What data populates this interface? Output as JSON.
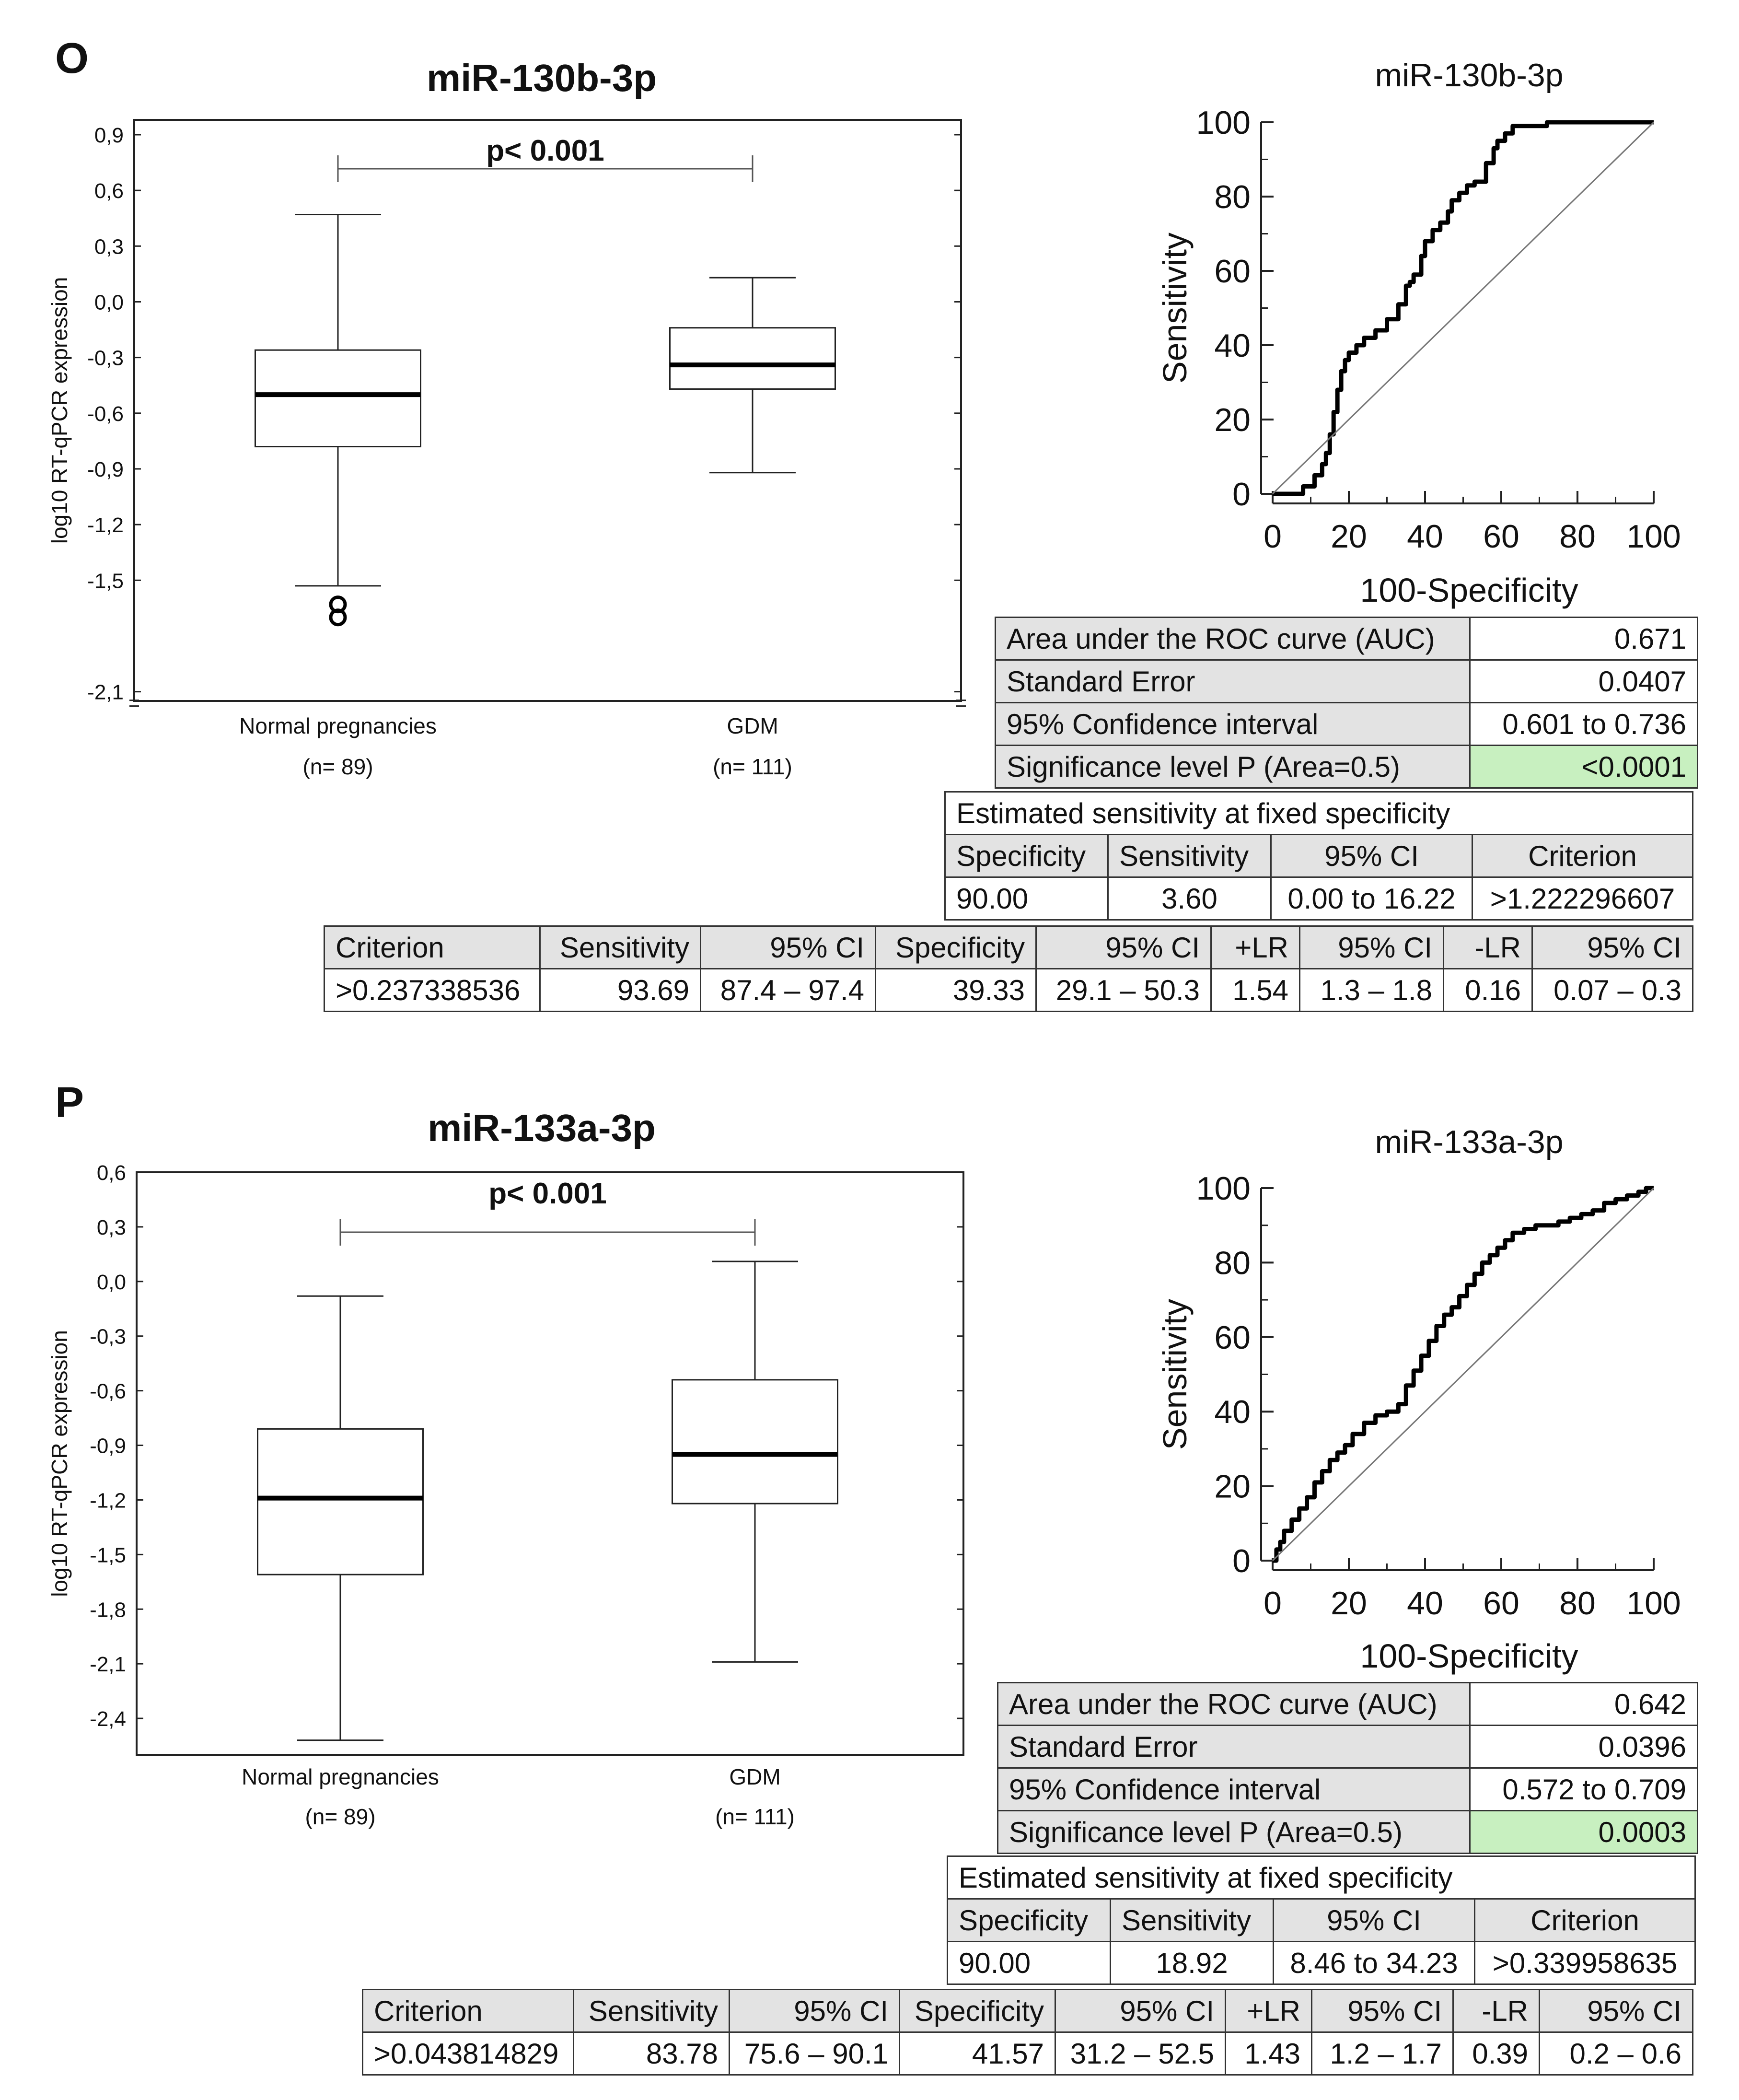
{
  "panels": [
    {
      "letter": "O",
      "boxplot_title": "miR-130b-3p",
      "roc_title": "miR-130b-3p",
      "auc_table": [
        {
          "label": "Area under the ROC curve (AUC)",
          "value": "0.671"
        },
        {
          "label": "Standard Error",
          "value": "0.0407"
        },
        {
          "label": "95% Confidence interval",
          "value": "0.601 to 0.736"
        },
        {
          "label": "Significance level P (Area=0.5)",
          "value": "<0.0001"
        }
      ],
      "fixed_spec": {
        "title": "Estimated sensitivity at fixed specificity",
        "headers": [
          "Specificity",
          "Sensitivity",
          "95% CI",
          "Criterion"
        ],
        "row": [
          "90.00",
          "3.60",
          "0.00 to 16.22",
          ">1.222296607"
        ]
      },
      "criterion_table": {
        "headers": [
          "Criterion",
          "Sensitivity",
          "95% CI",
          "Specificity",
          "95% CI",
          "+LR",
          "95% CI",
          "-LR",
          "95% CI"
        ],
        "row": [
          ">0.237338536",
          "93.69",
          "87.4 – 97.4",
          "39.33",
          "29.1 – 50.3",
          "1.54",
          "1.3 – 1.8",
          "0.16",
          "0.07 – 0.3"
        ]
      }
    },
    {
      "letter": "P",
      "boxplot_title": "miR-133a-3p",
      "roc_title": "miR-133a-3p",
      "auc_table": [
        {
          "label": "Area under the ROC curve (AUC)",
          "value": "0.642"
        },
        {
          "label": "Standard Error",
          "value": "0.0396"
        },
        {
          "label": "95% Confidence interval",
          "value": "0.572 to 0.709"
        },
        {
          "label": "Significance level P (Area=0.5)",
          "value": "0.0003"
        }
      ],
      "fixed_spec": {
        "title": "Estimated sensitivity at fixed specificity",
        "headers": [
          "Specificity",
          "Sensitivity",
          "95% CI",
          "Criterion"
        ],
        "row": [
          "90.00",
          "18.92",
          "8.46 to 34.23",
          ">0.339958635"
        ]
      },
      "criterion_table": {
        "headers": [
          "Criterion",
          "Sensitivity",
          "95% CI",
          "Specificity",
          "95% CI",
          "+LR",
          "95% CI",
          "-LR",
          "95% CI"
        ],
        "row": [
          ">0.043814829",
          "83.78",
          "75.6 – 90.1",
          "41.57",
          "31.2 – 52.5",
          "1.43",
          "1.2 – 1.7",
          "0.39",
          "0.2 – 0.6"
        ]
      }
    }
  ],
  "chart_data": [
    {
      "type": "box",
      "title": "miR-130b-3p",
      "ylabel": "log10 RT-qPCR expression",
      "ylim": [
        -2.15,
        0.98
      ],
      "yticks": [
        0.9,
        0.6,
        0.3,
        0.0,
        -0.3,
        -0.6,
        -0.9,
        -1.2,
        -1.5,
        -2.1
      ],
      "ytick_labels": [
        "0,9",
        "0,6",
        "0,3",
        "0,0",
        "-0,3",
        "-0,6",
        "-0,9",
        "-1,2",
        "-1,5",
        "-2,1"
      ],
      "ybreak_at": -2.1,
      "ybreak_plot": -1.76,
      "annotation": "p< 0.001",
      "groups": [
        {
          "name": "Normal pregnancies",
          "n_label": "(n= 89)",
          "whisker_low": -1.53,
          "q1": -0.78,
          "median": -0.5,
          "q3": -0.26,
          "whisker_high": 0.47,
          "outliers_plot": [
            -1.63,
            -1.7
          ]
        },
        {
          "name": "GDM",
          "n_label": "(n= 111)",
          "whisker_low": -0.92,
          "q1": -0.47,
          "median": -0.34,
          "q3": -0.14,
          "whisker_high": 0.13,
          "outliers_plot": []
        }
      ]
    },
    {
      "type": "line",
      "title": "miR-130b-3p",
      "xlabel": "100-Specificity",
      "ylabel": "Sensitivity",
      "xlim": [
        0,
        100
      ],
      "ylim": [
        0,
        100
      ],
      "xticks": [
        0,
        20,
        40,
        60,
        80,
        100
      ],
      "yticks": [
        0,
        20,
        40,
        60,
        80,
        100
      ],
      "series": [
        {
          "name": "ROC",
          "x": [
            0,
            0,
            4,
            8,
            11,
            13,
            14,
            15,
            16,
            17,
            18,
            19,
            20,
            22,
            24,
            27,
            30,
            33,
            35,
            36,
            37,
            39,
            40,
            42,
            44,
            46,
            47,
            49,
            51,
            53,
            56,
            58,
            59,
            61,
            63,
            65,
            68,
            70,
            72,
            75,
            80,
            85,
            90,
            100
          ],
          "y": [
            0,
            0,
            0,
            2,
            5,
            8,
            11,
            16,
            22,
            28,
            33,
            36,
            38,
            40,
            42,
            44,
            47,
            51,
            56,
            57,
            59,
            64,
            68,
            71,
            73,
            76,
            79,
            81,
            83,
            84,
            89,
            93,
            95,
            97,
            99,
            99,
            99,
            99,
            100,
            100,
            100,
            100,
            100,
            100
          ]
        },
        {
          "name": "Reference",
          "x": [
            0,
            100
          ],
          "y": [
            0,
            100
          ]
        }
      ]
    },
    {
      "type": "box",
      "title": "miR-133a-3p",
      "ylabel": "log10 RT-qPCR expression",
      "ylim": [
        -2.6,
        0.6
      ],
      "yticks": [
        0.6,
        0.3,
        0.0,
        -0.3,
        -0.6,
        -0.9,
        -1.2,
        -1.5,
        -1.8,
        -2.1,
        -2.4
      ],
      "ytick_labels": [
        "0,6",
        "0,3",
        "0,0",
        "-0,3",
        "-0,6",
        "-0,9",
        "-1,2",
        "-1,5",
        "-1,8",
        "-2,1",
        "-2,4"
      ],
      "annotation": "p< 0.001",
      "groups": [
        {
          "name": "Normal pregnancies",
          "n_label": "(n= 89)",
          "whisker_low": -2.52,
          "q1": -1.61,
          "median": -1.19,
          "q3": -0.81,
          "whisker_high": -0.08,
          "outliers_plot": []
        },
        {
          "name": "GDM",
          "n_label": "(n= 111)",
          "whisker_low": -2.09,
          "q1": -1.22,
          "median": -0.95,
          "q3": -0.54,
          "whisker_high": 0.11,
          "outliers_plot": []
        }
      ]
    },
    {
      "type": "line",
      "title": "miR-133a-3p",
      "xlabel": "100-Specificity",
      "ylabel": "Sensitivity",
      "xlim": [
        0,
        100
      ],
      "ylim": [
        0,
        100
      ],
      "xticks": [
        0,
        20,
        40,
        60,
        80,
        100
      ],
      "yticks": [
        0,
        20,
        40,
        60,
        80,
        100
      ],
      "series": [
        {
          "name": "ROC",
          "x": [
            0,
            1,
            2,
            3,
            5,
            7,
            9,
            11,
            13,
            15,
            17,
            19,
            21,
            24,
            27,
            30,
            33,
            35,
            37,
            39,
            41,
            43,
            45,
            47,
            49,
            51,
            53,
            55,
            57,
            59,
            61,
            63,
            66,
            69,
            72,
            75,
            78,
            81,
            84,
            87,
            90,
            93,
            96,
            98,
            100
          ],
          "y": [
            0,
            3,
            5,
            8,
            11,
            14,
            17,
            21,
            24,
            27,
            29,
            31,
            34,
            37,
            39,
            40,
            42,
            47,
            51,
            55,
            59,
            63,
            66,
            68,
            71,
            74,
            77,
            80,
            82,
            84,
            86,
            88,
            89,
            90,
            90,
            91,
            92,
            93,
            94,
            96,
            97,
            98,
            99,
            100,
            100
          ]
        },
        {
          "name": "Reference",
          "x": [
            0,
            100
          ],
          "y": [
            0,
            100
          ]
        }
      ]
    }
  ]
}
